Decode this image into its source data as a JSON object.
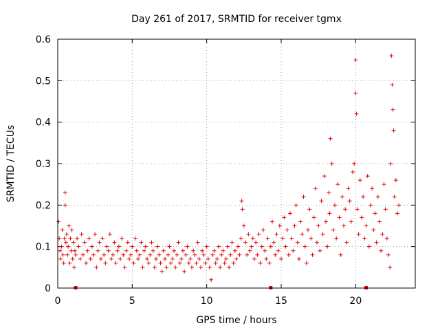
{
  "chart_data": {
    "type": "scatter",
    "title": "Day 261 of 2017, SRMTID for receiver tgmx",
    "xlabel": "GPS time / hours",
    "ylabel": "SRMTID / TECUs",
    "xlim": [
      0,
      24
    ],
    "ylim": [
      0,
      0.6
    ],
    "x_ticks": [
      0,
      5,
      10,
      15,
      20
    ],
    "x_tick_labels": [
      "0",
      "5",
      "10",
      "15",
      "20"
    ],
    "y_ticks": [
      0,
      0.1,
      0.2,
      0.3,
      0.4,
      0.5,
      0.6
    ],
    "y_tick_labels": [
      "0",
      "0.1",
      "0.2",
      "0.3",
      "0.4",
      "0.5",
      "0.6"
    ],
    "grid": true,
    "marker": "plus",
    "color": "#e00000",
    "baseline_markers": [
      1.2,
      14.3,
      20.7
    ],
    "series": [
      {
        "name": "SRMTID",
        "x": [
          0.05,
          0.1,
          0.15,
          0.2,
          0.25,
          0.3,
          0.35,
          0.4,
          0.45,
          0.5,
          0.5,
          0.55,
          0.6,
          0.65,
          0.7,
          0.75,
          0.8,
          0.85,
          0.9,
          0.95,
          1.0,
          1.05,
          1.1,
          1.15,
          1.2,
          1.3,
          1.4,
          1.5,
          1.6,
          1.7,
          1.8,
          1.9,
          2.0,
          2.1,
          2.2,
          2.3,
          2.4,
          2.5,
          2.6,
          2.7,
          2.8,
          2.9,
          3.0,
          3.1,
          3.2,
          3.3,
          3.4,
          3.5,
          3.6,
          3.7,
          3.8,
          3.9,
          4.0,
          4.1,
          4.2,
          4.3,
          4.4,
          4.5,
          4.6,
          4.7,
          4.8,
          4.9,
          5.0,
          5.1,
          5.2,
          5.3,
          5.4,
          5.5,
          5.6,
          5.7,
          5.8,
          5.9,
          6.0,
          6.1,
          6.2,
          6.3,
          6.4,
          6.5,
          6.6,
          6.7,
          6.8,
          6.9,
          7.0,
          7.1,
          7.2,
          7.3,
          7.4,
          7.5,
          7.6,
          7.7,
          7.8,
          7.9,
          8.0,
          8.1,
          8.2,
          8.3,
          8.4,
          8.5,
          8.6,
          8.7,
          8.8,
          8.9,
          9.0,
          9.1,
          9.2,
          9.3,
          9.4,
          9.5,
          9.6,
          9.7,
          9.8,
          9.9,
          10.0,
          10.1,
          10.2,
          10.3,
          10.4,
          10.5,
          10.6,
          10.7,
          10.8,
          10.9,
          11.0,
          11.1,
          11.2,
          11.3,
          11.4,
          11.5,
          11.6,
          11.7,
          11.8,
          11.9,
          12.0,
          12.1,
          12.2,
          12.3,
          12.35,
          12.4,
          12.5,
          12.6,
          12.7,
          12.8,
          12.9,
          13.0,
          13.1,
          13.2,
          13.3,
          13.4,
          13.5,
          13.6,
          13.7,
          13.8,
          13.9,
          14.0,
          14.1,
          14.2,
          14.3,
          14.4,
          14.5,
          14.6,
          14.7,
          14.8,
          14.9,
          15.0,
          15.1,
          15.2,
          15.3,
          15.4,
          15.5,
          15.6,
          15.7,
          15.8,
          15.9,
          16.0,
          16.1,
          16.2,
          16.3,
          16.4,
          16.5,
          16.6,
          16.7,
          16.8,
          16.9,
          17.0,
          17.1,
          17.2,
          17.3,
          17.4,
          17.5,
          17.6,
          17.7,
          17.8,
          17.9,
          18.0,
          18.1,
          18.2,
          18.25,
          18.3,
          18.4,
          18.5,
          18.6,
          18.7,
          18.8,
          18.9,
          19.0,
          19.1,
          19.2,
          19.3,
          19.4,
          19.5,
          19.6,
          19.7,
          19.8,
          19.9,
          20.0,
          20.0,
          20.05,
          20.1,
          20.2,
          20.3,
          20.4,
          20.5,
          20.6,
          20.7,
          20.8,
          20.9,
          21.0,
          21.1,
          21.2,
          21.3,
          21.4,
          21.5,
          21.6,
          21.7,
          21.8,
          21.9,
          22.0,
          22.1,
          22.2,
          22.3,
          22.35,
          22.4,
          22.45,
          22.5,
          22.55,
          22.6,
          22.7,
          22.8,
          22.9
        ],
        "y": [
          0.16,
          0.12,
          0.09,
          0.07,
          0.1,
          0.14,
          0.08,
          0.06,
          0.12,
          0.23,
          0.2,
          0.11,
          0.13,
          0.08,
          0.1,
          0.15,
          0.06,
          0.12,
          0.09,
          0.14,
          0.07,
          0.11,
          0.05,
          0.09,
          0.08,
          0.12,
          0.1,
          0.07,
          0.13,
          0.08,
          0.11,
          0.06,
          0.09,
          0.12,
          0.07,
          0.1,
          0.08,
          0.13,
          0.05,
          0.09,
          0.11,
          0.07,
          0.12,
          0.08,
          0.06,
          0.1,
          0.09,
          0.13,
          0.07,
          0.08,
          0.11,
          0.06,
          0.09,
          0.1,
          0.07,
          0.12,
          0.08,
          0.05,
          0.09,
          0.11,
          0.07,
          0.08,
          0.1,
          0.06,
          0.12,
          0.09,
          0.07,
          0.08,
          0.11,
          0.05,
          0.09,
          0.1,
          0.07,
          0.06,
          0.08,
          0.11,
          0.09,
          0.05,
          0.07,
          0.1,
          0.08,
          0.06,
          0.04,
          0.09,
          0.07,
          0.05,
          0.08,
          0.1,
          0.06,
          0.07,
          0.09,
          0.05,
          0.08,
          0.11,
          0.06,
          0.07,
          0.09,
          0.04,
          0.08,
          0.1,
          0.06,
          0.07,
          0.05,
          0.09,
          0.08,
          0.06,
          0.11,
          0.07,
          0.05,
          0.09,
          0.08,
          0.06,
          0.1,
          0.07,
          0.05,
          0.02,
          0.08,
          0.09,
          0.06,
          0.07,
          0.1,
          0.05,
          0.08,
          0.09,
          0.06,
          0.07,
          0.1,
          0.05,
          0.08,
          0.11,
          0.06,
          0.09,
          0.07,
          0.1,
          0.08,
          0.12,
          0.21,
          0.19,
          0.15,
          0.11,
          0.08,
          0.13,
          0.09,
          0.1,
          0.12,
          0.07,
          0.11,
          0.08,
          0.13,
          0.06,
          0.1,
          0.14,
          0.09,
          0.07,
          0.12,
          0.06,
          0.1,
          0.16,
          0.11,
          0.08,
          0.13,
          0.09,
          0.15,
          0.07,
          0.12,
          0.17,
          0.1,
          0.14,
          0.08,
          0.18,
          0.12,
          0.09,
          0.15,
          0.2,
          0.11,
          0.07,
          0.16,
          0.13,
          0.22,
          0.1,
          0.06,
          0.14,
          0.19,
          0.12,
          0.08,
          0.17,
          0.24,
          0.11,
          0.15,
          0.09,
          0.21,
          0.13,
          0.27,
          0.16,
          0.1,
          0.23,
          0.18,
          0.36,
          0.3,
          0.14,
          0.2,
          0.12,
          0.25,
          0.17,
          0.08,
          0.22,
          0.15,
          0.19,
          0.11,
          0.24,
          0.21,
          0.16,
          0.28,
          0.3,
          0.55,
          0.47,
          0.42,
          0.19,
          0.13,
          0.26,
          0.17,
          0.22,
          0.12,
          0.15,
          0.27,
          0.1,
          0.2,
          0.24,
          0.14,
          0.18,
          0.11,
          0.22,
          0.16,
          0.09,
          0.13,
          0.25,
          0.19,
          0.12,
          0.08,
          0.05,
          0.3,
          0.56,
          0.49,
          0.43,
          0.38,
          0.22,
          0.26,
          0.18,
          0.2
        ]
      }
    ]
  }
}
